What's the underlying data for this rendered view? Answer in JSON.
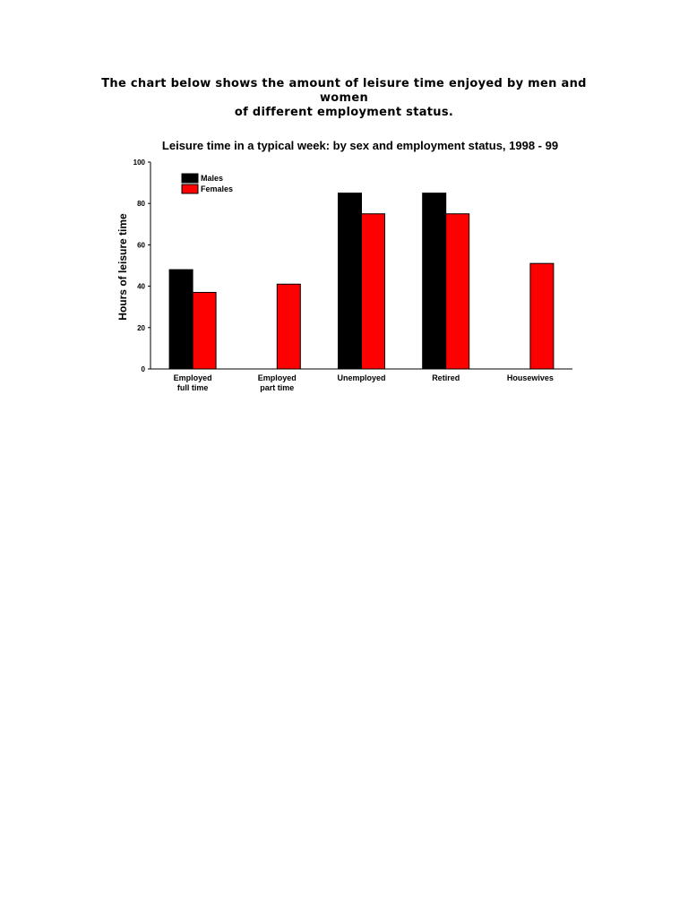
{
  "page": {
    "intro_line1": "The chart below shows the amount of leisure time enjoyed by men and women",
    "intro_line2": "of different employment status."
  },
  "chart_data": {
    "type": "bar",
    "title": "Leisure time in a typical week: by sex and employment status, 1998 - 99",
    "ylabel": "Hours of leisure time",
    "xlabel": "",
    "ylim": [
      0,
      100
    ],
    "yticks": [
      0,
      20,
      40,
      60,
      80,
      100
    ],
    "categories": [
      [
        "Employed",
        "full time"
      ],
      [
        "Employed",
        "part time"
      ],
      [
        "Unemployed"
      ],
      [
        "Retired"
      ],
      [
        "Housewives"
      ]
    ],
    "series": [
      {
        "name": "Males",
        "color": "#000000",
        "values": [
          48,
          null,
          85,
          85,
          null
        ]
      },
      {
        "name": "Females",
        "color": "#ff0000",
        "values": [
          37,
          41,
          75,
          75,
          51
        ]
      }
    ],
    "legend": "top-left",
    "grid": false
  }
}
